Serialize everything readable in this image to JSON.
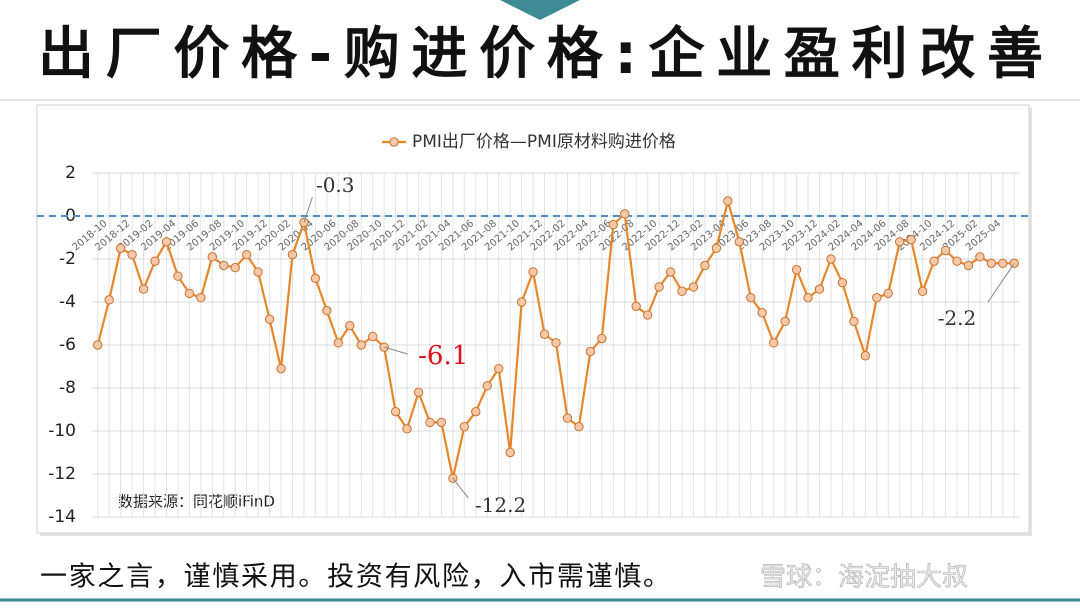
{
  "slide": {
    "title": "出厂价格-购进价格:企业盈利改善",
    "footer": "一家之言，谨慎采用。投资有风险，入市需谨慎。",
    "watermark": "雪球：海淀抽大叔"
  },
  "chart_data": {
    "type": "line",
    "source": "数据来源：同花顺iFinD",
    "categories": [
      "2018-10",
      null,
      "2018-12",
      null,
      "2019-02",
      null,
      "2019-04",
      null,
      "2019-06",
      null,
      "2019-08",
      null,
      "2019-10",
      null,
      "2019-12",
      null,
      "2020-02",
      null,
      "2020-04",
      null,
      "2020-06",
      null,
      "2020-08",
      null,
      "2020-10",
      null,
      "2020-12",
      null,
      "2021-02",
      null,
      "2021-04",
      null,
      "2021-06",
      null,
      "2021-08",
      null,
      "2021-10",
      null,
      "2021-12",
      null,
      "2022-02",
      null,
      "2022-04",
      null,
      "2022-06",
      null,
      "2022-08",
      null,
      "2022-10",
      null,
      "2022-12",
      null,
      "2023-02",
      null,
      "2023-04",
      null,
      "2023-06",
      null,
      "2023-08",
      null,
      "2023-10",
      null,
      "2023-12",
      null,
      "2024-02",
      null,
      "2024-04",
      null,
      "2024-06",
      null,
      "2024-08",
      null,
      "2024-10",
      null,
      "2024-12",
      null,
      "2025-02",
      null,
      "2025-04",
      null,
      null
    ],
    "series": [
      {
        "name": "PMI出厂价格—PMI原材料购进价格",
        "color": "#e8862a",
        "values": [
          -6.0,
          -3.9,
          -1.5,
          -1.8,
          -3.4,
          -2.1,
          -1.2,
          -2.8,
          -3.6,
          -3.8,
          -1.9,
          -2.3,
          -2.4,
          -1.8,
          -2.6,
          -4.8,
          -7.1,
          -1.8,
          -0.3,
          -2.9,
          -4.4,
          -5.9,
          -5.1,
          -6.0,
          -5.6,
          -6.1,
          -9.1,
          -9.9,
          -8.2,
          -9.6,
          -9.6,
          -12.2,
          -9.8,
          -9.1,
          -7.9,
          -7.1,
          -11.0,
          -4.0,
          -2.6,
          -5.5,
          -5.9,
          -9.4,
          -9.8,
          -6.3,
          -5.7,
          -0.4,
          0.1,
          -4.2,
          -4.6,
          -3.3,
          -2.6,
          -3.5,
          -3.3,
          -2.3,
          -1.5,
          0.7,
          -1.2,
          -3.8,
          -4.5,
          -5.9,
          -4.9,
          -2.5,
          -3.8,
          -3.4,
          -2.0,
          -3.1,
          -4.9,
          -6.5,
          -3.8,
          -3.6,
          -1.2,
          -1.1,
          -3.5,
          -2.1,
          -1.6,
          -2.1,
          -2.3,
          -1.9,
          -2.2,
          -2.2,
          -2.2
        ],
        "value_labels": [
          null,
          null,
          null,
          null,
          null,
          null,
          null,
          null,
          null,
          null,
          null,
          null,
          null,
          null,
          null,
          null,
          null,
          null,
          "-0.3",
          null,
          null,
          null,
          null,
          null,
          null,
          "-6.1",
          null,
          null,
          null,
          null,
          null,
          "-12.2",
          null,
          null,
          null,
          null,
          null,
          null,
          null,
          null,
          null,
          null,
          null,
          null,
          null,
          null,
          null,
          null,
          null,
          null,
          null,
          null,
          null,
          null,
          null,
          null,
          null,
          null,
          null,
          null,
          null,
          null,
          null,
          null,
          null,
          null,
          null,
          null,
          null,
          null,
          null,
          null,
          null,
          null,
          null,
          null,
          null,
          null,
          null,
          null,
          "-2.2"
        ],
        "value_label_colors": [
          null,
          null,
          null,
          null,
          null,
          null,
          null,
          null,
          null,
          null,
          null,
          null,
          null,
          null,
          null,
          null,
          null,
          null,
          "#333333",
          null,
          null,
          null,
          null,
          null,
          null,
          "#e3101a",
          null,
          null,
          null,
          null,
          null,
          "#333333",
          null,
          null,
          null,
          null,
          null,
          null,
          null,
          null,
          null,
          null,
          null,
          null,
          null,
          null,
          null,
          null,
          null,
          null,
          null,
          null,
          null,
          null,
          null,
          null,
          null,
          null,
          null,
          null,
          null,
          null,
          null,
          null,
          null,
          null,
          null,
          null,
          null,
          null,
          null,
          null,
          null,
          null,
          null,
          null,
          null,
          null,
          null,
          null,
          "#333333"
        ]
      }
    ],
    "ylim": [
      -14,
      2
    ],
    "yticks": [
      2,
      0,
      -2,
      -4,
      -6,
      -8,
      -10,
      -12,
      -14
    ],
    "reference_line": 0,
    "reference_color": "#4a90c8",
    "grid": true,
    "legend": "top"
  }
}
